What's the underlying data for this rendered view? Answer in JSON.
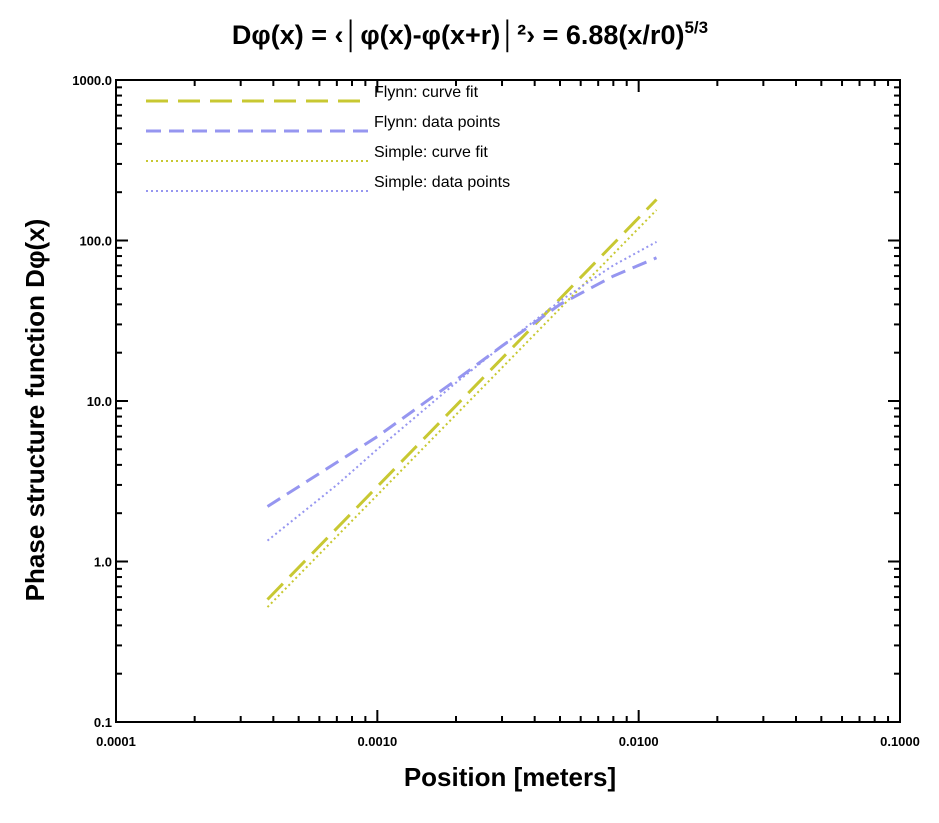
{
  "chart_data": {
    "type": "line",
    "title": "Dφ(x) = ‹│φ(x)-φ(x+r)│²› = 6.88(x/r0)",
    "title_superscript": "5/3",
    "xlabel": "Position [meters]",
    "ylabel": "Phase structure function Dφ(x)",
    "xscale": "log",
    "yscale": "log",
    "xlim": [
      0.0001,
      0.1
    ],
    "ylim": [
      0.1,
      1000
    ],
    "x_ticks": [
      0.0001,
      0.001,
      0.01,
      0.1
    ],
    "x_tick_labels": [
      "0.0001",
      "0.0010",
      "0.0100",
      "0.1000"
    ],
    "y_ticks": [
      0.1,
      1,
      10,
      100,
      1000
    ],
    "y_tick_labels": [
      "0.1",
      "1.0",
      "10.0",
      "100.0",
      "1000.0"
    ],
    "grid": false,
    "legend_position": "top-left",
    "series": [
      {
        "name": "Flynn: curve fit",
        "color": "#c8c832",
        "style": "long-dash",
        "x": [
          0.00038,
          0.0117
        ],
        "y": [
          0.58,
          180
        ]
      },
      {
        "name": "Flynn: data points",
        "color": "#9696f0",
        "style": "dash",
        "x": [
          0.00038,
          0.001,
          0.002,
          0.003,
          0.005,
          0.008,
          0.0117
        ],
        "y": [
          2.2,
          6.0,
          13.5,
          22.0,
          40.0,
          60.0,
          78.0
        ]
      },
      {
        "name": "Simple: curve fit",
        "color": "#c8c832",
        "style": "dotted",
        "x": [
          0.00038,
          0.0117
        ],
        "y": [
          0.52,
          155
        ]
      },
      {
        "name": "Simple: data points",
        "color": "#9696f0",
        "style": "dotted",
        "x": [
          0.00038,
          0.0007,
          0.001,
          0.002,
          0.003,
          0.005,
          0.008,
          0.0117
        ],
        "y": [
          1.35,
          3.0,
          5.0,
          13.0,
          22.0,
          42.0,
          70.0,
          98.0
        ]
      }
    ]
  }
}
